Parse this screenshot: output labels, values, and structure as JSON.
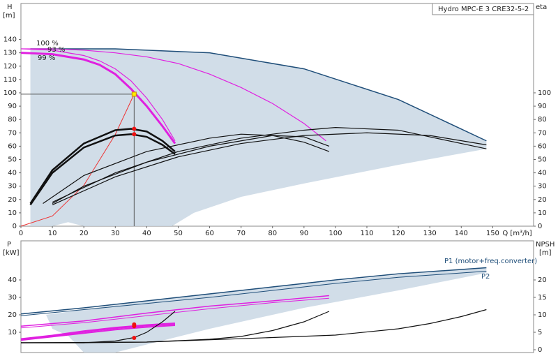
{
  "title": "Hydro MPC-E 3 CRE32-5-2",
  "chart_data": [
    {
      "type": "line",
      "ylabel": "H",
      "yunit": "[m]",
      "y2label": "eta",
      "xlabel": "Q [m³/h]",
      "xlim": [
        0,
        163
      ],
      "ylim": [
        0,
        167
      ],
      "y2lim": [
        0,
        167
      ],
      "xticks": [
        0,
        10,
        20,
        30,
        40,
        50,
        60,
        70,
        80,
        90,
        100,
        110,
        120,
        130,
        140,
        150
      ],
      "yticks": [
        0,
        10,
        20,
        30,
        40,
        50,
        60,
        70,
        80,
        90,
        100,
        110,
        120,
        130,
        140
      ],
      "y2ticks": [
        0,
        10,
        20,
        30,
        40,
        50,
        60,
        70,
        80,
        90,
        100
      ],
      "annotations": [
        "100 %",
        "93 %",
        "99 %"
      ],
      "series": [
        {
          "type": "area",
          "color": "#c9d7e4",
          "x": [
            3,
            3,
            30,
            60,
            90,
            120,
            148,
            148,
            120,
            90,
            70,
            55,
            48,
            40,
            20,
            15,
            10,
            3
          ],
          "values": [
            8,
            133,
            133,
            130,
            118,
            95,
            64,
            58,
            46,
            32,
            22,
            10,
            0,
            0,
            0,
            3,
            0,
            0
          ]
        },
        {
          "color": "#1f4e79",
          "width": 1.5,
          "x": [
            3,
            30,
            60,
            90,
            120,
            148
          ],
          "values": [
            133,
            133,
            130,
            118,
            95,
            64
          ]
        },
        {
          "color": "#e020e0",
          "width": 1.2,
          "x": [
            0,
            10,
            20,
            30,
            40,
            50,
            60,
            70,
            80,
            90,
            97
          ],
          "values": [
            133,
            133,
            132,
            130,
            127,
            122,
            114,
            104,
            92,
            77,
            64
          ]
        },
        {
          "color": "#e020e0",
          "width": 1.2,
          "x": [
            0,
            10,
            20,
            25,
            30,
            35,
            40,
            45,
            49
          ],
          "values": [
            133,
            132,
            128,
            124,
            118,
            109,
            96,
            80,
            64
          ]
        },
        {
          "color": "#e020e0",
          "width": 3,
          "x": [
            0,
            10,
            20,
            25,
            30,
            35,
            40,
            45,
            49
          ],
          "values": [
            130,
            129,
            125,
            121,
            114,
            103,
            90,
            75,
            62
          ]
        },
        {
          "color": "#ee3333",
          "width": 1,
          "x": [
            0,
            10,
            20,
            30,
            36
          ],
          "values": [
            0,
            7.6,
            30.6,
            68.8,
            99
          ]
        },
        {
          "color": "#555555",
          "width": 1,
          "x": [
            0,
            36,
            36
          ],
          "values": [
            99,
            99,
            0
          ]
        },
        {
          "color": "#111111",
          "width": 2.5,
          "axis": "y2",
          "x": [
            3,
            10,
            20,
            30,
            35,
            40,
            45,
            49
          ],
          "values": [
            17,
            42,
            62,
            72,
            73,
            71,
            64,
            56
          ]
        },
        {
          "color": "#111111",
          "width": 2.5,
          "axis": "y2",
          "x": [
            3,
            10,
            20,
            30,
            35,
            40,
            45,
            49
          ],
          "values": [
            16,
            40,
            59,
            68,
            69,
            67,
            61,
            54
          ]
        },
        {
          "color": "#111111",
          "width": 1.2,
          "axis": "y2",
          "x": [
            7,
            20,
            40,
            60,
            70,
            80,
            90,
            98
          ],
          "values": [
            17,
            38,
            56,
            66,
            69,
            68,
            63,
            56
          ]
        },
        {
          "color": "#111111",
          "width": 1.2,
          "axis": "y2",
          "x": [
            10,
            20,
            40,
            60,
            80,
            90,
            98
          ],
          "values": [
            17,
            30,
            48,
            60,
            68,
            67,
            60
          ]
        },
        {
          "color": "#111111",
          "width": 1.2,
          "axis": "y2",
          "x": [
            10,
            30,
            50,
            70,
            90,
            100,
            120,
            148
          ],
          "values": [
            18,
            40,
            56,
            66,
            72,
            74,
            72,
            58
          ]
        },
        {
          "color": "#111111",
          "width": 1.2,
          "axis": "y2",
          "x": [
            10,
            30,
            50,
            70,
            90,
            110,
            130,
            148
          ],
          "values": [
            16,
            37,
            52,
            62,
            68,
            70,
            68,
            61
          ]
        },
        {
          "type": "points",
          "color": "#ee1111",
          "axis": "y2",
          "x": [
            36,
            36
          ],
          "values": [
            73,
            69
          ]
        },
        {
          "type": "square",
          "color": "#ffee00",
          "x": [
            36
          ],
          "values": [
            99
          ]
        }
      ]
    },
    {
      "type": "line",
      "ylabel": "P",
      "yunit": "[kW]",
      "y2label": "NPSH",
      "y2unit": "[m]",
      "xlim": [
        0,
        163
      ],
      "ylim": [
        -1.6,
        62.4
      ],
      "y2lim": [
        -0.8,
        31.2
      ],
      "yticks": [
        10,
        20,
        30,
        40
      ],
      "y2ticks": [
        0,
        5,
        10,
        15,
        20
      ],
      "annotations": [
        "P1 (motor+freq.converter)",
        "P2"
      ],
      "series": [
        {
          "type": "area",
          "color": "#c9d7e4",
          "x": [
            8,
            40,
            80,
            120,
            148,
            148,
            120,
            90,
            60,
            40,
            30,
            20,
            15,
            10
          ],
          "values": [
            20,
            28,
            36,
            43,
            47,
            44,
            34,
            24,
            12,
            3,
            -1.6,
            -1.6,
            8,
            12
          ]
        },
        {
          "color": "#1f4e79",
          "width": 1.5,
          "x": [
            0,
            20,
            40,
            60,
            80,
            100,
            120,
            148
          ],
          "values": [
            20.5,
            24,
            28,
            32,
            36,
            40,
            43.5,
            47
          ]
        },
        {
          "color": "#1f4e79",
          "width": 1,
          "x": [
            0,
            20,
            40,
            60,
            80,
            100,
            120,
            148
          ],
          "values": [
            19.5,
            23,
            26.5,
            30,
            34,
            38,
            41.5,
            45
          ]
        },
        {
          "color": "#e020e0",
          "width": 1.5,
          "x": [
            0,
            20,
            40,
            60,
            80,
            98
          ],
          "values": [
            13.5,
            16.5,
            21,
            25,
            28,
            31
          ]
        },
        {
          "color": "#e020e0",
          "width": 1,
          "x": [
            0,
            20,
            40,
            60,
            80,
            98
          ],
          "values": [
            12.5,
            15.5,
            19.5,
            23.5,
            27,
            29.5
          ]
        },
        {
          "color": "#e020e0",
          "width": 3,
          "x": [
            0,
            10,
            20,
            30,
            40,
            49
          ],
          "values": [
            6,
            8,
            10.5,
            12.5,
            14,
            15
          ]
        },
        {
          "color": "#e020e0",
          "width": 2,
          "x": [
            0,
            10,
            20,
            30,
            40,
            49
          ],
          "values": [
            5.5,
            7.5,
            9.5,
            11.5,
            13,
            14
          ]
        },
        {
          "type": "points",
          "color": "#ee1111",
          "x": [
            36,
            36
          ],
          "values": [
            14.5,
            13.5
          ]
        },
        {
          "color": "#111111",
          "width": 1.2,
          "axis": "y2",
          "x": [
            0,
            10,
            20,
            30,
            36,
            40,
            45,
            49
          ],
          "values": [
            2,
            2,
            2,
            2.5,
            3.5,
            5,
            8,
            11
          ]
        },
        {
          "color": "#111111",
          "width": 1.2,
          "axis": "y2",
          "x": [
            0,
            20,
            40,
            60,
            70,
            80,
            90,
            98
          ],
          "values": [
            2,
            2,
            2.2,
            3,
            3.8,
            5.5,
            8,
            11
          ]
        },
        {
          "color": "#111111",
          "width": 1.2,
          "axis": "y2",
          "x": [
            0,
            40,
            80,
            100,
            120,
            130,
            140,
            148
          ],
          "values": [
            2,
            2.2,
            3.5,
            4.2,
            6,
            7.5,
            9.5,
            11.5
          ]
        },
        {
          "type": "points",
          "color": "#ee1111",
          "axis": "y2",
          "x": [
            36
          ],
          "values": [
            3.4
          ]
        }
      ]
    }
  ]
}
